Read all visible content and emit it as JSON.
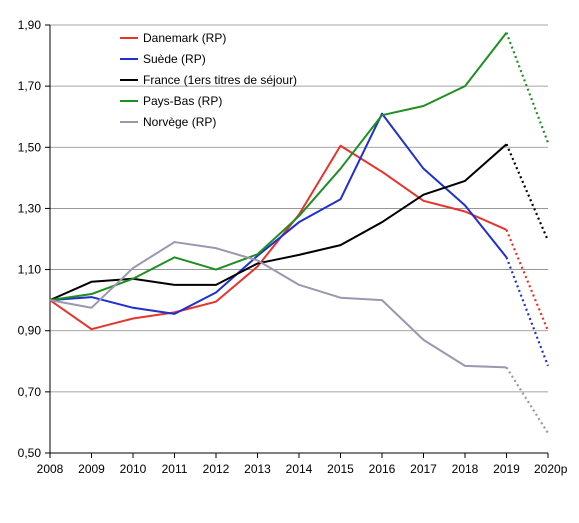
{
  "chart_data": {
    "type": "line",
    "x": [
      "2008",
      "2009",
      "2010",
      "2011",
      "2012",
      "2013",
      "2014",
      "2015",
      "2016",
      "2017",
      "2018",
      "2019",
      "2020p"
    ],
    "ylim": [
      0.5,
      1.9
    ],
    "yticks": [
      "0,50",
      "0,70",
      "0,90",
      "1,10",
      "1,30",
      "1,50",
      "1,70",
      "1,90"
    ],
    "grid": "horizontal",
    "legend_position": "top-left",
    "projection_from": "2019",
    "series": [
      {
        "name": "Danemark (RP)",
        "color": "#e8332a",
        "values": [
          1.0,
          0.905,
          0.94,
          0.96,
          0.995,
          1.11,
          1.28,
          1.505,
          1.42,
          1.325,
          1.29,
          1.23,
          0.9
        ]
      },
      {
        "name": "Suède (RP)",
        "color": "#1f2fd0",
        "values": [
          1.0,
          1.01,
          0.975,
          0.955,
          1.025,
          1.145,
          1.255,
          1.33,
          1.61,
          1.43,
          1.31,
          1.14,
          0.785
        ]
      },
      {
        "name": "France (1ers titres de séjour)",
        "color": "#000000",
        "values": [
          1.0,
          1.06,
          1.07,
          1.05,
          1.05,
          1.12,
          1.148,
          1.18,
          1.255,
          1.345,
          1.39,
          1.51,
          1.195
        ]
      },
      {
        "name": "Pays-Bas (RP)",
        "color": "#1e8f22",
        "values": [
          1.0,
          1.02,
          1.07,
          1.14,
          1.1,
          1.15,
          1.275,
          1.43,
          1.605,
          1.635,
          1.7,
          1.875,
          1.515
        ]
      },
      {
        "name": "Norvège (RP)",
        "color": "#9b97ae",
        "values": [
          1.0,
          0.975,
          1.105,
          1.19,
          1.17,
          1.13,
          1.05,
          1.008,
          1.0,
          0.87,
          0.785,
          0.78,
          0.565
        ]
      }
    ]
  }
}
